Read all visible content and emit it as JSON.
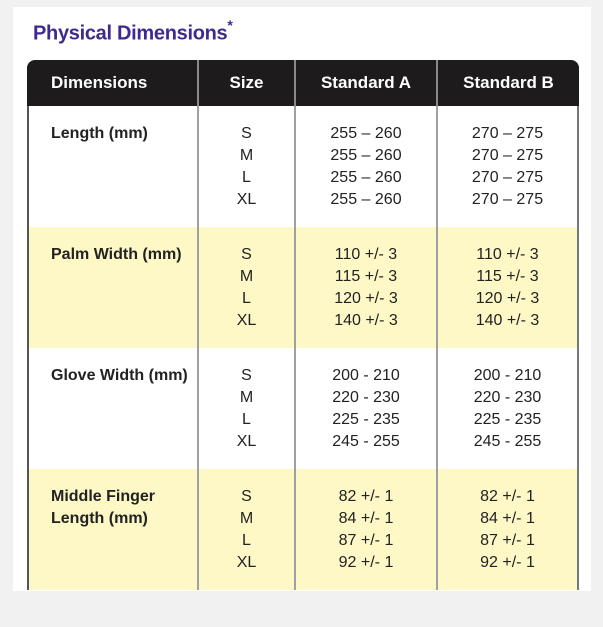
{
  "title": "Physical Dimensions",
  "title_mark": "*",
  "headers": [
    "Dimensions",
    "Size",
    "Standard A",
    "Standard B"
  ],
  "colors": {
    "title": "#3e2a8c",
    "header_bg": "#1e1b1c",
    "highlight_row": "#fdf8c6"
  },
  "rows": [
    {
      "label": "Length (mm)",
      "sizes": [
        "S",
        "M",
        "L",
        "XL"
      ],
      "standard_a": [
        "255 – 260",
        "255 – 260",
        "255 – 260",
        "255 – 260"
      ],
      "standard_b": [
        "270 – 275",
        "270 – 275",
        "270 – 275",
        "270 – 275"
      ]
    },
    {
      "label": "Palm Width (mm)",
      "sizes": [
        "S",
        "M",
        "L",
        "XL"
      ],
      "standard_a": [
        "110 +/- 3",
        "115 +/- 3",
        "120 +/- 3",
        "140 +/- 3"
      ],
      "standard_b": [
        "110 +/- 3",
        "115 +/- 3",
        "120 +/- 3",
        "140 +/- 3"
      ]
    },
    {
      "label": "Glove Width (mm)",
      "sizes": [
        "S",
        "M",
        "L",
        "XL"
      ],
      "standard_a": [
        "200 - 210",
        "220 - 230",
        "225 - 235",
        "245 - 255"
      ],
      "standard_b": [
        "200 - 210",
        "220 - 230",
        "225 - 235",
        "245 - 255"
      ]
    },
    {
      "label": "Middle Finger Length (mm)",
      "sizes": [
        "S",
        "M",
        "L",
        "XL"
      ],
      "standard_a": [
        "82 +/- 1",
        "84 +/- 1",
        "87 +/- 1",
        "92 +/- 1"
      ],
      "standard_b": [
        "82 +/- 1",
        "84 +/- 1",
        "87 +/- 1",
        "92 +/- 1"
      ]
    }
  ]
}
